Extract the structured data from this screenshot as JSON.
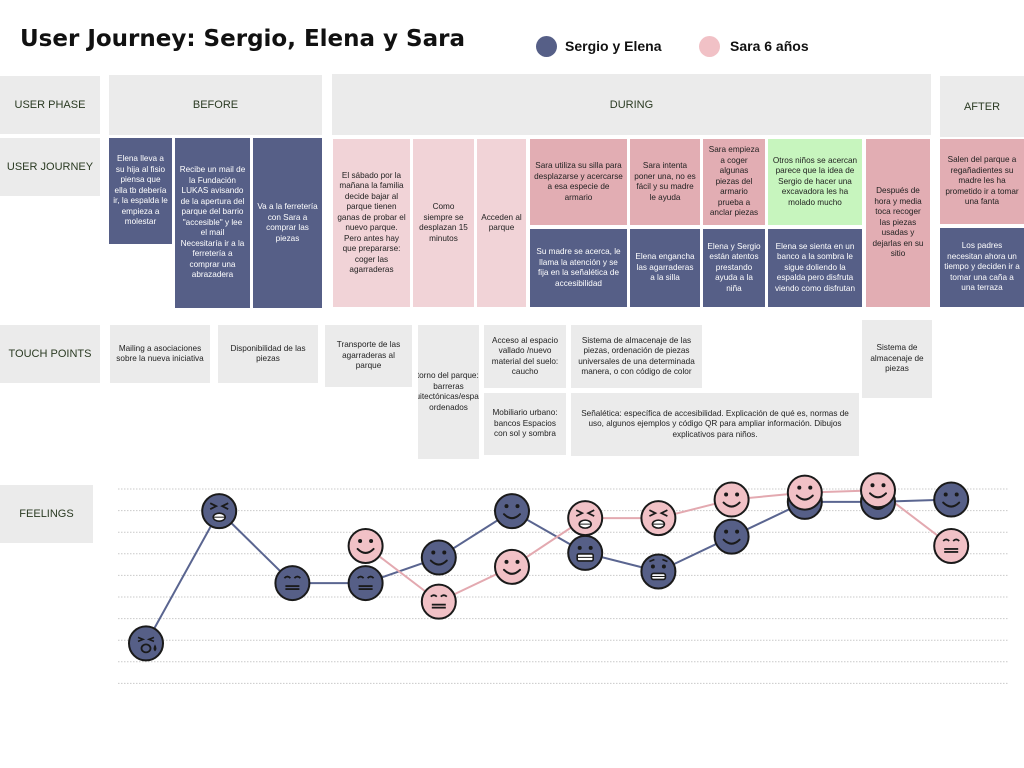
{
  "title": "User Journey: Sergio, Elena y Sara",
  "legend": [
    {
      "label": "Sergio y Elena",
      "color": "#565f87"
    },
    {
      "label": "Sara 6 años",
      "color": "#f1c1c6"
    }
  ],
  "row_labels": {
    "user_phase": "USER PHASE",
    "user_journey": "USER JOURNEY",
    "touch_points": "TOUCH POINTS",
    "feelings": "FEELINGS"
  },
  "phases": {
    "before": "BEFORE",
    "during": "DURING",
    "after": "AFTER"
  },
  "journey": [
    "Elena lleva a su hija al fisio piensa que ella tb debería ir, la espalda le empieza a molestar",
    "Recibe un mail de la Fundación LUKAS avisando de la apertura del parque del barrio \"accesible\" y lee el mail Necesitaría ir a la ferretería a comprar una abrazadera",
    "Va a la ferretería con Sara a comprar las piezas",
    "El sábado por la mañana la familia decide bajar al parque tienen ganas de probar el nuevo parque. Pero antes hay que prepararse: coger las agarraderas",
    "Como siempre se desplazan 15 minutos",
    "Acceden al parque",
    "Sara utiliza su silla para desplazarse y acercarse a esa especie de armario",
    "Su madre se acerca, le llama la atención y se fija en la señalética de accesibilidad",
    "Sara intenta poner una, no es fácil y su madre le ayuda",
    "Elena engancha las agarraderas a la silla",
    "Sara empieza a coger algunas piezas del armario prueba a anclar piezas",
    "Elena y Sergio están atentos prestando ayuda a la niña",
    "Otros niños se acercan parece que la idea de Sergio de hacer una excavadora les ha molado mucho",
    "Elena se sienta en un banco a la sombra le sigue doliendo la espalda pero disfruta viendo como disfrutan",
    "Después de hora y media toca recoger las piezas usadas y dejarlas en su sitio",
    "Salen del parque a regañadientes su madre les ha prometido ir a tomar una fanta",
    "Los padres necesitan ahora un tiempo y deciden ir a tomar una caña a una terraza"
  ],
  "touch_points": [
    "Mailing a asociaciones sobre la nueva iniciativa",
    "Disponibilidad de las piezas",
    "Transporte de las agarraderas al parque",
    "Entorno del parque: no barreras arquitectónicas/espacios ordenados",
    "Acceso al espacio vallado /nuevo material del suelo: caucho",
    "Mobiliario urbano: bancos Espacios con sol y sombra",
    "Sistema de almacenaje de las piezas, ordenación de piezas universales de una determinada manera, o con código de color",
    "Señalética: específica de accesibilidad. Explicación de qué es, normas de uso, algunos ejemplos y código QR para ampliar información. Dibujos explicativos para niños.",
    "Sistema de almacenaje de piezas"
  ],
  "feelings": {
    "navy_color": "#565f87",
    "pink_color": "#f1c1c6",
    "line_navy": "#5a6590",
    "line_pink": "#e3a9b0",
    "sergio_elena": [
      {
        "step": 1,
        "level": 0.5,
        "emotion": "crying"
      },
      {
        "step": 2,
        "level": 6.2,
        "emotion": "angry"
      },
      {
        "step": 3,
        "level": 3.1,
        "emotion": "neutral"
      },
      {
        "step": 4,
        "level": 3.1,
        "emotion": "neutral"
      },
      {
        "step": 5,
        "level": 4.2,
        "emotion": "happy"
      },
      {
        "step": 6,
        "level": 6.2,
        "emotion": "happy"
      },
      {
        "step": 7,
        "level": 4.4,
        "emotion": "grimace"
      },
      {
        "step": 8,
        "level": 3.6,
        "emotion": "worried"
      },
      {
        "step": 9,
        "level": 5.1,
        "emotion": "happy"
      },
      {
        "step": 10,
        "level": 6.6,
        "emotion": "happy"
      },
      {
        "step": 11,
        "level": 6.6,
        "emotion": "happy"
      },
      {
        "step": 12,
        "level": 6.7,
        "emotion": "happy"
      }
    ],
    "sara": [
      {
        "step": 4,
        "level": 4.7,
        "emotion": "happy"
      },
      {
        "step": 5,
        "level": 2.3,
        "emotion": "neutral"
      },
      {
        "step": 6,
        "level": 3.8,
        "emotion": "happy"
      },
      {
        "step": 7,
        "level": 5.9,
        "emotion": "angry"
      },
      {
        "step": 8,
        "level": 5.9,
        "emotion": "angry"
      },
      {
        "step": 9,
        "level": 6.7,
        "emotion": "happy"
      },
      {
        "step": 10,
        "level": 7.0,
        "emotion": "happy"
      },
      {
        "step": 11,
        "level": 7.1,
        "emotion": "happy"
      },
      {
        "step": 12,
        "level": 4.7,
        "emotion": "neutral"
      }
    ]
  }
}
